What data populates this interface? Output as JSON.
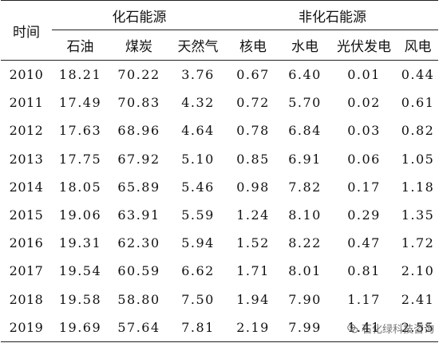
{
  "table": {
    "header": {
      "time_label": "时间",
      "group_fossil": "化石能源",
      "group_nonfossil": "非化石能源",
      "columns": [
        "石油",
        "煤炭",
        "天然气",
        "核电",
        "水电",
        "光伏发电",
        "风电"
      ]
    },
    "rows": [
      [
        "2010",
        "18.21",
        "70.22",
        "3.76",
        "0.67",
        "6.40",
        "0.01",
        "0.44"
      ],
      [
        "2011",
        "17.49",
        "70.83",
        "4.32",
        "0.72",
        "5.70",
        "0.02",
        "0.61"
      ],
      [
        "2012",
        "17.63",
        "68.96",
        "4.64",
        "0.78",
        "6.84",
        "0.03",
        "0.82"
      ],
      [
        "2013",
        "17.75",
        "67.92",
        "5.10",
        "0.85",
        "6.91",
        "0.06",
        "1.05"
      ],
      [
        "2014",
        "18.05",
        "65.89",
        "5.46",
        "0.98",
        "7.82",
        "0.17",
        "1.18"
      ],
      [
        "2015",
        "19.06",
        "63.91",
        "5.59",
        "1.24",
        "8.10",
        "0.29",
        "1.35"
      ],
      [
        "2016",
        "19.31",
        "62.30",
        "5.94",
        "1.52",
        "8.22",
        "0.47",
        "1.72"
      ],
      [
        "2017",
        "19.54",
        "60.59",
        "6.62",
        "1.71",
        "8.01",
        "0.81",
        "2.10"
      ],
      [
        "2018",
        "19.58",
        "58.80",
        "7.50",
        "1.94",
        "7.90",
        "1.17",
        "2.41"
      ],
      [
        "2019",
        "19.69",
        "57.64",
        "7.81",
        "2.19",
        "7.99",
        "1.41",
        "2.55"
      ]
    ]
  },
  "watermark": {
    "text": "石化绿科技咨询",
    "icon": "wechat-icon"
  }
}
